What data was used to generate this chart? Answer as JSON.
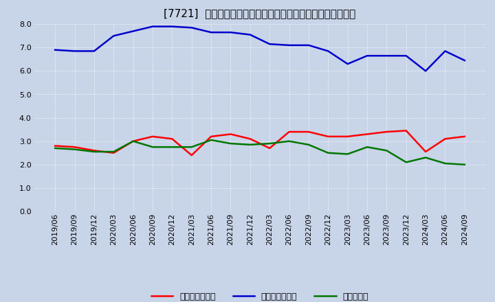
{
  "title": "[7721]  売上債権回転率、買入債務回転率、在庫回転率の推移",
  "x_labels": [
    "2019/06",
    "2019/09",
    "2019/12",
    "2020/03",
    "2020/06",
    "2020/09",
    "2020/12",
    "2021/03",
    "2021/06",
    "2021/09",
    "2021/12",
    "2022/03",
    "2022/06",
    "2022/09",
    "2022/12",
    "2023/03",
    "2023/06",
    "2023/09",
    "2023/12",
    "2024/03",
    "2024/06",
    "2024/09"
  ],
  "receivables_turnover": [
    2.8,
    2.75,
    2.6,
    2.5,
    3.0,
    3.2,
    3.1,
    2.4,
    3.2,
    3.3,
    3.1,
    2.7,
    3.4,
    3.4,
    3.2,
    3.2,
    3.3,
    3.4,
    3.45,
    2.55,
    3.1,
    3.2
  ],
  "payables_turnover": [
    6.9,
    6.85,
    6.85,
    7.5,
    7.7,
    7.9,
    7.9,
    7.85,
    7.65,
    7.65,
    7.55,
    7.15,
    7.1,
    7.1,
    6.85,
    6.3,
    6.65,
    6.65,
    6.65,
    6.0,
    6.85,
    6.45
  ],
  "inventory_turnover": [
    2.7,
    2.65,
    2.55,
    2.55,
    3.0,
    2.75,
    2.75,
    2.75,
    3.05,
    2.9,
    2.85,
    2.9,
    3.0,
    2.85,
    2.5,
    2.45,
    2.75,
    2.6,
    2.1,
    2.3,
    2.05,
    2.0
  ],
  "receivables_color": "#ff0000",
  "payables_color": "#0000cc",
  "inventory_color": "#007700",
  "ylim": [
    0.0,
    8.0
  ],
  "yticks": [
    0.0,
    1.0,
    2.0,
    3.0,
    4.0,
    5.0,
    6.0,
    7.0,
    8.0
  ],
  "legend_labels": [
    "売上債権回転率",
    "買入債務回転率",
    "在庫回転率"
  ],
  "bg_color": "#c8d4e8",
  "plot_bg_color": "#c8d4e8",
  "grid_color": "#ffffff",
  "line_width": 1.8,
  "title_fontsize": 11,
  "tick_fontsize": 8,
  "legend_fontsize": 9
}
